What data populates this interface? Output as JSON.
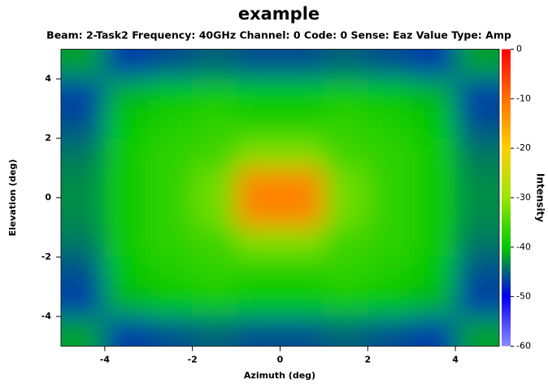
{
  "chart_data": {
    "type": "heatmap",
    "title": "example",
    "subtitle": "Beam: 2-Task2 Frequency: 40GHz Channel: 0 Code: 0 Sense: Eaz Value Type: Amp",
    "x_label": "Azimuth (deg)",
    "y_label": "Elevation (deg)",
    "colorbar_label": "Intensity",
    "xlim": [
      -5,
      5
    ],
    "ylim": [
      -5,
      5
    ],
    "xticks": [
      -4,
      -2,
      0,
      2,
      4
    ],
    "yticks": [
      -4,
      -2,
      0,
      2,
      4
    ],
    "zlim": [
      -60,
      0
    ],
    "zticks": [
      0,
      -10,
      -20,
      -30,
      -40,
      -50,
      -60
    ],
    "colors": [
      "#8c8cff",
      "#0000f0",
      "#00c800",
      "#9be600",
      "#ffd000",
      "#ff7000",
      "#ff0000"
    ],
    "x": [
      -4.5,
      -3.5,
      -2.5,
      -1.5,
      -0.5,
      0.5,
      1.5,
      2.5,
      3.5,
      4.5
    ],
    "y": [
      4.5,
      3.5,
      2.5,
      1.5,
      0.5,
      -0.5,
      -1.5,
      -2.5,
      -3.5,
      -4.5
    ],
    "z": [
      [
        -42,
        -47,
        -46,
        -45,
        -46,
        -46,
        -45,
        -46,
        -47,
        -42
      ],
      [
        -47,
        -41,
        -40,
        -39,
        -40,
        -40,
        -39,
        -40,
        -41,
        -47
      ],
      [
        -46,
        -40,
        -38,
        -37,
        -38,
        -38,
        -37,
        -38,
        -40,
        -46
      ],
      [
        -44,
        -39,
        -37,
        -36,
        -32,
        -32,
        -36,
        -37,
        -39,
        -44
      ],
      [
        -43,
        -39,
        -37,
        -33,
        -12,
        -12,
        -33,
        -37,
        -39,
        -43
      ],
      [
        -43,
        -39,
        -37,
        -33,
        -12,
        -12,
        -33,
        -37,
        -39,
        -43
      ],
      [
        -44,
        -39,
        -37,
        -36,
        -32,
        -32,
        -36,
        -37,
        -39,
        -44
      ],
      [
        -46,
        -40,
        -38,
        -37,
        -38,
        -38,
        -37,
        -38,
        -40,
        -46
      ],
      [
        -47,
        -41,
        -40,
        -39,
        -40,
        -40,
        -39,
        -40,
        -41,
        -47
      ],
      [
        -42,
        -47,
        -46,
        -45,
        -46,
        -46,
        -45,
        -46,
        -47,
        -42
      ]
    ]
  }
}
